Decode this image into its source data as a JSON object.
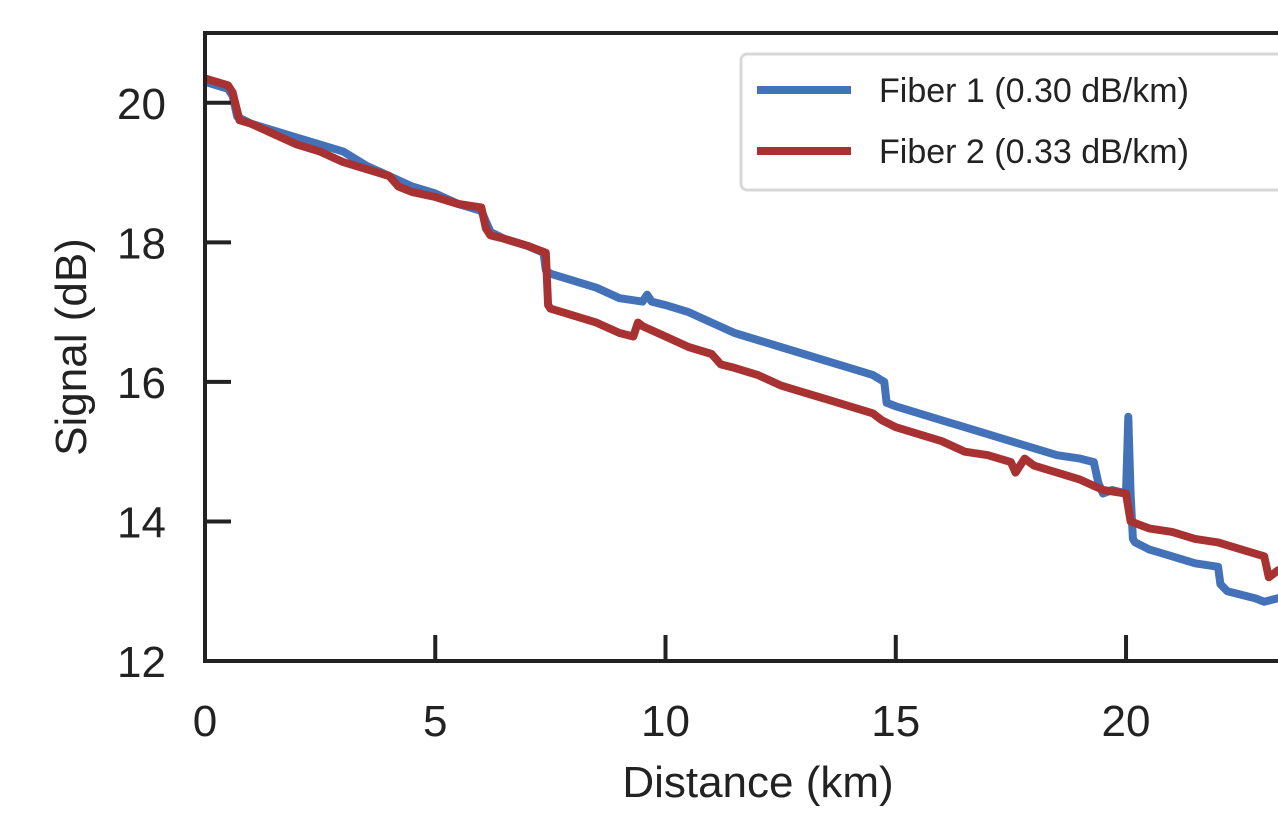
{
  "chart_data": {
    "type": "line",
    "title": "",
    "xlabel": "Distance (km)",
    "ylabel": "Signal (dB)",
    "xlim": [
      0,
      23.3
    ],
    "ylim": [
      12,
      21
    ],
    "xticks": [
      0,
      5,
      10,
      15,
      20
    ],
    "yticks": [
      12,
      14,
      16,
      18,
      20
    ],
    "grid": false,
    "legend_position": "top-right",
    "series": [
      {
        "name": "Fiber 1 (0.30 dB/km)",
        "color": "#4472b8",
        "x": [
          0.0,
          0.5,
          0.6,
          0.7,
          1.0,
          1.5,
          2.0,
          2.5,
          3.0,
          3.5,
          4.0,
          4.5,
          5.0,
          5.5,
          6.0,
          6.1,
          6.2,
          6.5,
          7.0,
          7.35,
          7.4,
          7.5,
          8.0,
          8.5,
          9.0,
          9.5,
          9.6,
          9.7,
          10.0,
          10.5,
          11.0,
          11.5,
          12.0,
          12.5,
          13.0,
          13.5,
          14.0,
          14.5,
          14.75,
          14.8,
          15.0,
          15.5,
          16.0,
          16.5,
          17.0,
          17.5,
          18.0,
          18.5,
          19.0,
          19.3,
          19.4,
          19.5,
          19.7,
          20.0,
          20.05,
          20.1,
          20.15,
          20.2,
          20.5,
          21.0,
          21.5,
          22.0,
          22.05,
          22.2,
          22.5,
          22.8,
          23.0,
          23.3
        ],
        "y": [
          20.3,
          20.2,
          20.1,
          19.8,
          19.7,
          19.6,
          19.5,
          19.4,
          19.3,
          19.1,
          18.95,
          18.8,
          18.7,
          18.55,
          18.45,
          18.3,
          18.15,
          18.05,
          17.95,
          17.85,
          17.6,
          17.55,
          17.45,
          17.35,
          17.2,
          17.15,
          17.25,
          17.15,
          17.1,
          17.0,
          16.85,
          16.7,
          16.6,
          16.5,
          16.4,
          16.3,
          16.2,
          16.1,
          16.0,
          15.7,
          15.65,
          15.55,
          15.45,
          15.35,
          15.25,
          15.15,
          15.05,
          14.95,
          14.9,
          14.85,
          14.55,
          14.4,
          14.45,
          14.4,
          15.5,
          14.4,
          13.75,
          13.7,
          13.6,
          13.5,
          13.4,
          13.35,
          13.1,
          13.0,
          12.95,
          12.9,
          12.85,
          12.9
        ]
      },
      {
        "name": "Fiber 2 (0.33 dB/km)",
        "color": "#a83232",
        "x": [
          0.0,
          0.5,
          0.6,
          0.75,
          1.0,
          1.5,
          2.0,
          2.5,
          3.0,
          3.5,
          4.0,
          4.2,
          4.5,
          5.0,
          5.5,
          6.0,
          6.1,
          6.2,
          6.5,
          7.0,
          7.4,
          7.45,
          7.5,
          8.0,
          8.5,
          9.0,
          9.3,
          9.4,
          9.5,
          10.0,
          10.5,
          11.0,
          11.2,
          11.5,
          12.0,
          12.5,
          13.0,
          13.5,
          14.0,
          14.5,
          14.7,
          15.0,
          15.5,
          16.0,
          16.5,
          17.0,
          17.5,
          17.6,
          17.8,
          18.0,
          18.5,
          19.0,
          19.5,
          20.0,
          20.1,
          20.5,
          21.0,
          21.5,
          22.0,
          22.5,
          23.0,
          23.1,
          23.3
        ],
        "y": [
          20.35,
          20.25,
          20.15,
          19.75,
          19.7,
          19.55,
          19.4,
          19.3,
          19.15,
          19.05,
          18.95,
          18.8,
          18.72,
          18.65,
          18.55,
          18.5,
          18.2,
          18.1,
          18.05,
          17.95,
          17.85,
          17.1,
          17.05,
          16.95,
          16.85,
          16.7,
          16.65,
          16.85,
          16.8,
          16.65,
          16.5,
          16.4,
          16.25,
          16.2,
          16.1,
          15.95,
          15.85,
          15.75,
          15.65,
          15.55,
          15.45,
          15.35,
          15.25,
          15.15,
          15.0,
          14.95,
          14.85,
          14.7,
          14.9,
          14.8,
          14.7,
          14.6,
          14.45,
          14.4,
          14.0,
          13.9,
          13.85,
          13.75,
          13.7,
          13.6,
          13.5,
          13.2,
          13.3
        ]
      }
    ]
  }
}
